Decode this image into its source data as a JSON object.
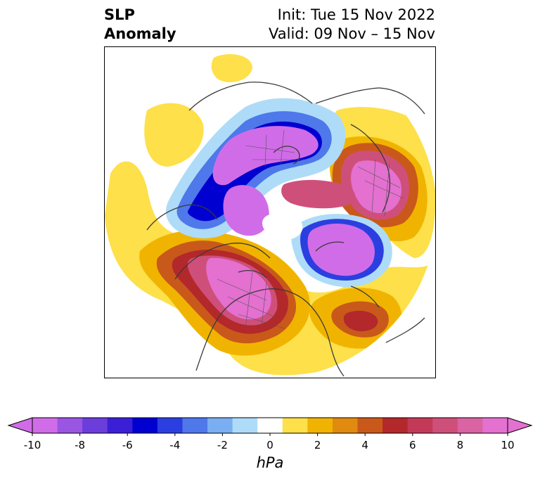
{
  "title": {
    "left_line1": "SLP",
    "left_line2": "Anomaly",
    "right_line1": "Init: Tue 15 Nov 2022",
    "right_line2": "Valid: 09 Nov – 15 Nov"
  },
  "colorbar": {
    "units": "hPa",
    "ticks": [
      "-10",
      "-8",
      "-6",
      "-4",
      "-2",
      "0",
      "2",
      "4",
      "6",
      "8",
      "10"
    ],
    "levels": [
      -10,
      -9,
      -8,
      -7,
      -6,
      -5,
      -4,
      -3,
      -2,
      -1,
      1,
      2,
      3,
      4,
      5,
      6,
      7,
      8,
      9,
      10
    ],
    "colors": [
      "#d16ce8",
      "#9a55e2",
      "#6b3ddb",
      "#3a1fd6",
      "#0000d0",
      "#2b3fe0",
      "#4f78ea",
      "#79aff2",
      "#aedcf8",
      "#ffffff",
      "#fde04a",
      "#f0b400",
      "#e08a10",
      "#c9591b",
      "#b3282a",
      "#c33a59",
      "#cf4f7b",
      "#d963a3",
      "#e470d0"
    ],
    "under_color": "#d16ce8",
    "over_color": "#e470d0"
  },
  "map": {
    "projection": "north-polar-stereographic",
    "field": "sea-level-pressure-anomaly"
  }
}
